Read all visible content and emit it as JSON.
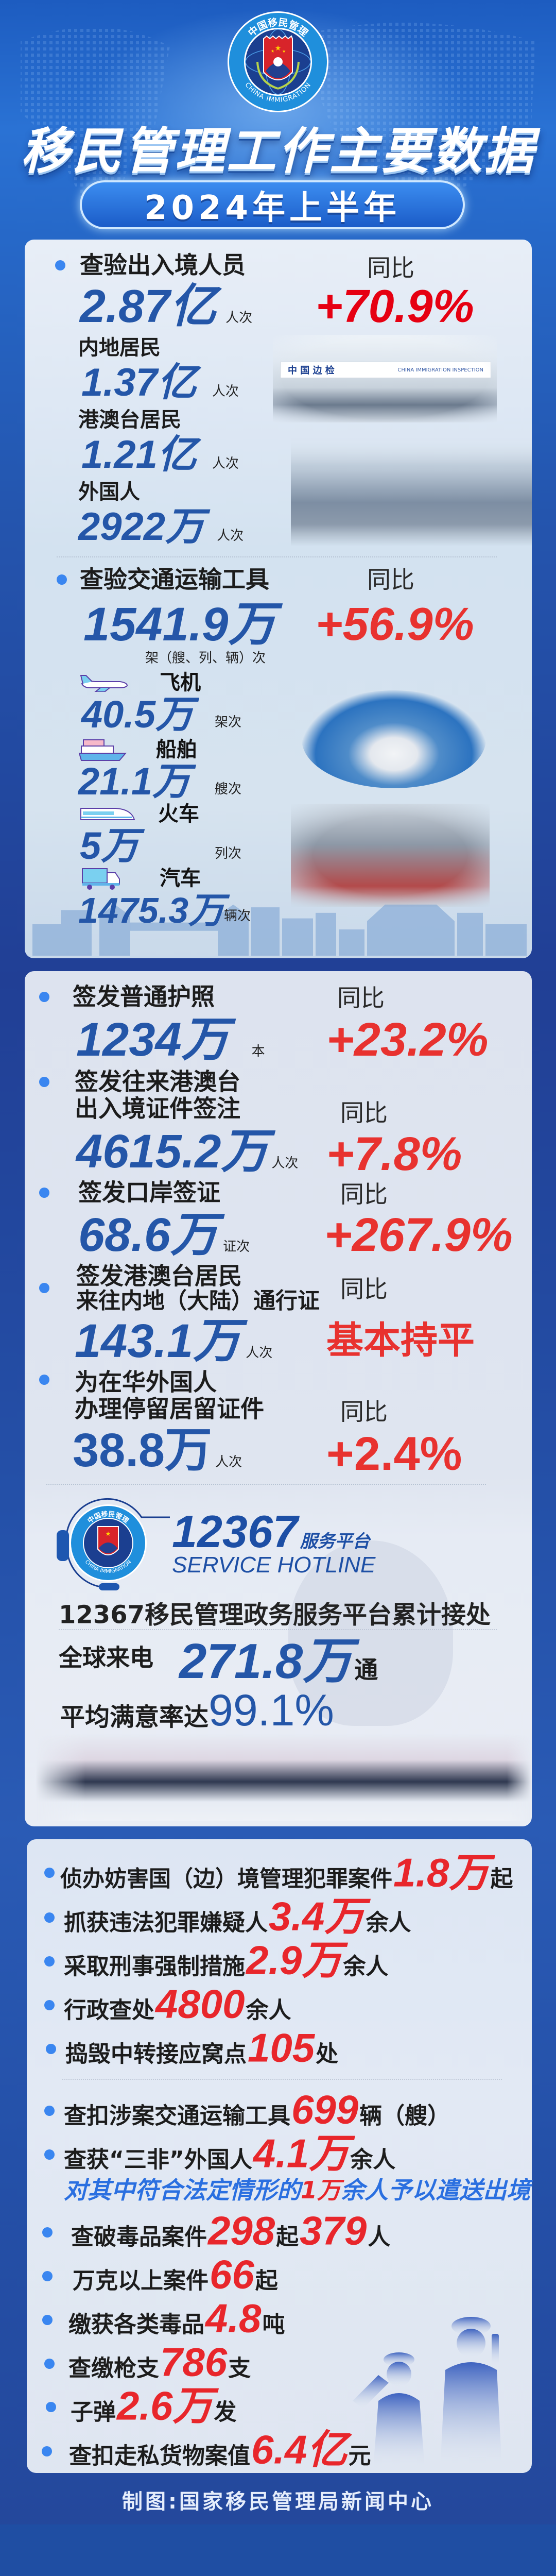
{
  "header": {
    "logo_text_cn": "中国移民管理",
    "logo_text_en": "CHINA IMMIGRATION",
    "title": "移民管理工作主要数据",
    "period": "2024年上半年"
  },
  "colors": {
    "number_blue": "#2456a8",
    "increase_red": "#e8322f",
    "bullet_blue": "#3a86f0",
    "background_blue": "#2455ae",
    "card_bg": "#dfe6f1"
  },
  "inspection": {
    "persons": {
      "label": "查验出入境人员",
      "value": "2.87亿",
      "unit": "人次",
      "yoy_label": "同比",
      "yoy": "+70.9%",
      "breakdown": [
        {
          "label": "内地居民",
          "value": "1.37亿",
          "unit": "人次"
        },
        {
          "label": "港澳台居民",
          "value": "1.21亿",
          "unit": "人次"
        },
        {
          "label": "外国人",
          "value": "2922万",
          "unit": "人次"
        }
      ],
      "photo_sign_cn": "中 国 边 检",
      "photo_sign_en": "CHINA IMMIGRATION INSPECTION"
    },
    "vehicles": {
      "label": "查验交通运输工具",
      "value": "1541.9万",
      "unit": "架（艘、列、辆）次",
      "yoy_label": "同比",
      "yoy": "+56.9%",
      "breakdown": [
        {
          "icon": "airplane-icon",
          "label": "飞机",
          "value": "40.5万",
          "unit": "架次"
        },
        {
          "icon": "ship-icon",
          "label": "船舶",
          "value": "21.1万",
          "unit": "艘次"
        },
        {
          "icon": "train-icon",
          "label": "火车",
          "value": "5万",
          "unit": "列次"
        },
        {
          "icon": "truck-icon",
          "label": "汽车",
          "value": "1475.3万",
          "unit": "辆次"
        }
      ]
    }
  },
  "documents": {
    "items": [
      {
        "label_lines": [
          "签发普通护照"
        ],
        "value": "1234万",
        "unit": "本",
        "yoy_label": "同比",
        "yoy": "+23.2%"
      },
      {
        "label_lines": [
          "签发往来港澳台",
          "出入境证件签注"
        ],
        "value": "4615.2万",
        "unit": "人次",
        "yoy_label": "同比",
        "yoy": "+7.8%"
      },
      {
        "label_lines": [
          "签发口岸签证"
        ],
        "value": "68.6万",
        "unit": "证次",
        "yoy_label": "同比",
        "yoy": "+267.9%"
      },
      {
        "label_lines": [
          "签发港澳台居民",
          "来往内地（大陆）通行证"
        ],
        "value": "143.1万",
        "unit": "人次",
        "yoy_label": "同比",
        "yoy": "基本持平"
      },
      {
        "label_lines": [
          "为在华外国人",
          "办理停留居留证件"
        ],
        "value": "38.8万",
        "unit": "人次",
        "yoy_label": "同比",
        "yoy": "+2.4%"
      }
    ]
  },
  "hotline": {
    "number": "12367",
    "suffix": "服务平台",
    "en": "SERVICE HOTLINE",
    "logo_text_cn": "中国移民管理",
    "logo_text_en": "CHINA IMMIGRATION",
    "desc": "12367移民管理政务服务平台累计接处",
    "calls_label": "全球来电",
    "calls_value": "271.8万",
    "calls_unit": "通",
    "satisfaction_label": "平均满意率达",
    "satisfaction_value": "99.1%"
  },
  "enforcement": {
    "items": [
      {
        "label": "侦办妨害国（边）境管理犯罪案件",
        "value": "1.8万",
        "unit": "起"
      },
      {
        "label": "抓获违法犯罪嫌疑人",
        "value": "3.4万",
        "unit": "余人"
      },
      {
        "label": "采取刑事强制措施",
        "value": "2.9万",
        "unit": "余人"
      },
      {
        "label": "行政查处",
        "value": "4800",
        "unit": "余人"
      },
      {
        "label": "捣毁中转接应窝点",
        "value": "105",
        "unit": "处"
      },
      {
        "label": "查扣涉案交通运输工具",
        "value": "699",
        "unit": "辆（艘）"
      },
      {
        "label": "查获“三非”外国人",
        "value": "4.1万",
        "unit": "余人",
        "note": {
          "pre": "对其中符合法定情形的",
          "value": "1万",
          "post": "余人予以遣送出境"
        }
      },
      {
        "label": "查破毒品案件",
        "value": "298",
        "unit": "起",
        "value2": "379",
        "unit2": "人"
      },
      {
        "label": "万克以上案件",
        "value": "66",
        "unit": "起"
      },
      {
        "label": "缴获各类毒品",
        "value": "4.8",
        "unit": "吨"
      },
      {
        "label": "查缴枪支",
        "value": "786",
        "unit": "支"
      },
      {
        "label": "子弹",
        "value": "2.6万",
        "unit": "发"
      },
      {
        "label": "查扣走私货物案值",
        "value": "6.4亿",
        "unit": "元"
      }
    ]
  },
  "footer": "制图:国家移民管理局新闻中心"
}
